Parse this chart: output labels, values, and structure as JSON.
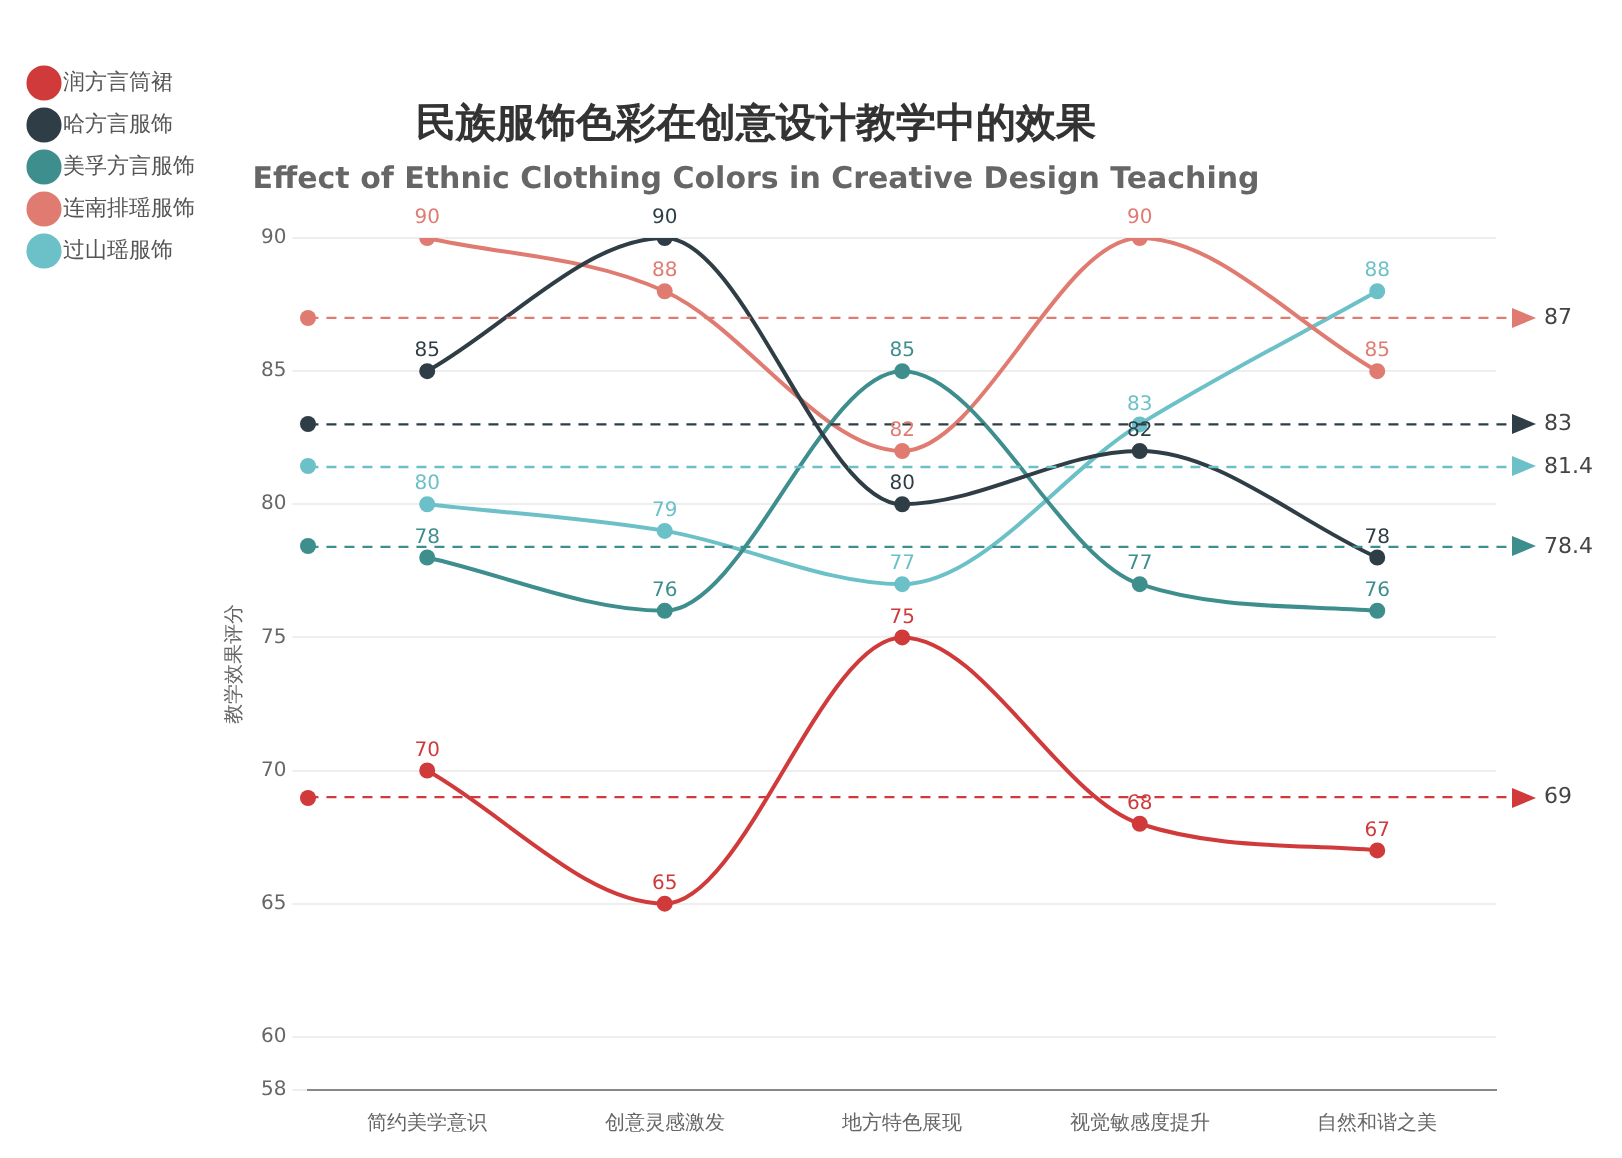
{
  "chart_data": {
    "type": "line",
    "title": "民族服饰色彩在创意设计教学中的效果",
    "subtitle": "Effect of Ethnic Clothing Colors in Creative Design Teaching",
    "ylabel": "教学效果评分",
    "categories": [
      "简约美学意识",
      "创意灵感激发",
      "地方特色展现",
      "视觉敏感度提升",
      "自然和谐之美"
    ],
    "series": [
      {
        "name": "润方言筒裙",
        "color": "#d03a3a",
        "values": [
          70,
          65,
          75,
          68,
          67
        ]
      },
      {
        "name": "哈方言服饰",
        "color": "#2f3e46",
        "values": [
          85,
          90,
          80,
          82,
          78
        ]
      },
      {
        "name": "美孚方言服饰",
        "color": "#3e8e8e",
        "values": [
          78,
          76,
          85,
          77,
          76
        ]
      },
      {
        "name": "连南排瑶服饰",
        "color": "#e07b72",
        "values": [
          90,
          88,
          82,
          90,
          85
        ]
      },
      {
        "name": "过山瑶服饰",
        "color": "#6cc0c8",
        "values": [
          80,
          79,
          77,
          83,
          88
        ]
      }
    ],
    "ylim": [
      58,
      90
    ],
    "yticks": [
      58,
      60,
      65,
      70,
      75,
      80,
      85,
      90
    ],
    "grid": "y",
    "legend": "top left",
    "marker": "circle",
    "data_labels": true,
    "ref_lines": [
      {
        "axis": "y",
        "value": 69,
        "label": "69",
        "color": "#d03a3a",
        "line_style": "dashed"
      },
      {
        "axis": "y",
        "value": 83,
        "label": "83",
        "color": "#2f3e46",
        "line_style": "dashed"
      },
      {
        "axis": "y",
        "value": 78.4,
        "label": "78.4",
        "color": "#3e8e8e",
        "line_style": "dashed"
      },
      {
        "axis": "y",
        "value": 87,
        "label": "87",
        "color": "#e07b72",
        "line_style": "dashed"
      },
      {
        "axis": "y",
        "value": 81.4,
        "label": "81.4",
        "color": "#6cc0c8",
        "line_style": "dashed"
      }
    ]
  }
}
